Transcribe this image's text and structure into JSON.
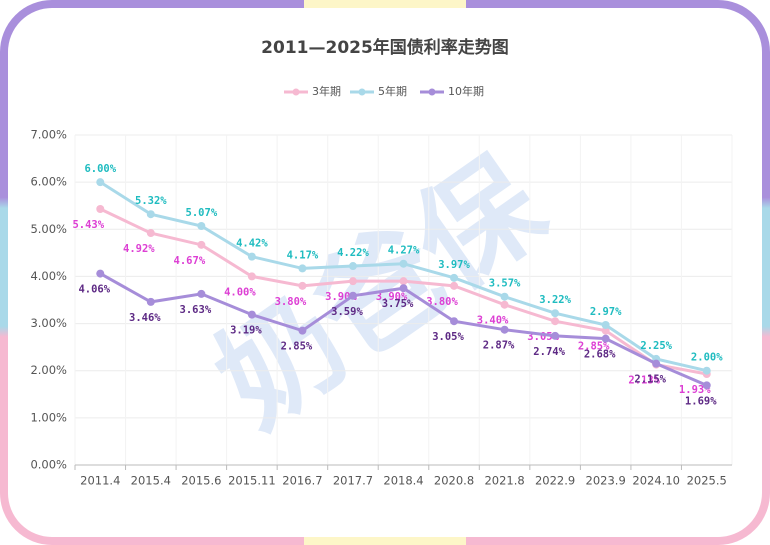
{
  "chart_data": {
    "type": "line",
    "title": "2011—2025年国债利率走势图",
    "watermark": "奶爸保",
    "categories": [
      "2011.4",
      "2015.4",
      "2015.6",
      "2015.11",
      "2016.7",
      "2017.7",
      "2018.4",
      "2020.8",
      "2021.8",
      "2022.9",
      "2023.9",
      "2024.10",
      "2025.5"
    ],
    "series": [
      {
        "name": "3年期",
        "color": "#f6b9d1",
        "label_color": "#dd3fd4",
        "values": [
          5.43,
          4.92,
          4.67,
          4.0,
          3.8,
          3.9,
          3.9,
          3.8,
          3.4,
          3.05,
          2.85,
          2.13,
          1.93
        ],
        "value_labels": [
          "5.43%",
          "4.92%",
          "4.67%",
          "4.00%",
          "3.80%",
          "3.90%",
          "3.90%",
          "3.80%",
          "3.40%",
          "3.05%",
          "2.85%",
          "2.13%",
          "1.93%"
        ]
      },
      {
        "name": "5年期",
        "color": "#a9d9e9",
        "label_color": "#1fbcc0",
        "values": [
          6.0,
          5.32,
          5.07,
          4.42,
          4.17,
          4.22,
          4.27,
          3.97,
          3.57,
          3.22,
          2.97,
          2.25,
          2.0
        ],
        "value_labels": [
          "6.00%",
          "5.32%",
          "5.07%",
          "4.42%",
          "4.17%",
          "4.22%",
          "4.27%",
          "3.97%",
          "3.57%",
          "3.22%",
          "2.97%",
          "2.25%",
          "2.00%"
        ]
      },
      {
        "name": "10年期",
        "color": "#a68dd9",
        "label_color": "#5e2a85",
        "values": [
          4.06,
          3.46,
          3.63,
          3.19,
          2.85,
          3.59,
          3.75,
          3.05,
          2.87,
          2.74,
          2.68,
          2.15,
          1.69
        ],
        "value_labels": [
          "4.06%",
          "3.46%",
          "3.63%",
          "3.19%",
          "2.85%",
          "3.59%",
          "3.75%",
          "3.05%",
          "2.87%",
          "2.74%",
          "2.68%",
          "2.15%",
          "1.69%"
        ]
      }
    ],
    "ylim": [
      0,
      7
    ],
    "yticks": [
      {
        "value": 0,
        "label": "0.00%"
      },
      {
        "value": 1,
        "label": "1.00%"
      },
      {
        "value": 2,
        "label": "2.00%"
      },
      {
        "value": 3,
        "label": "3.00%"
      },
      {
        "value": 4,
        "label": "4.00%"
      },
      {
        "value": 5,
        "label": "5.00%"
      },
      {
        "value": 6,
        "label": "6.00%"
      },
      {
        "value": 7,
        "label": "7.00%"
      }
    ],
    "grid": true,
    "legend": "top"
  }
}
